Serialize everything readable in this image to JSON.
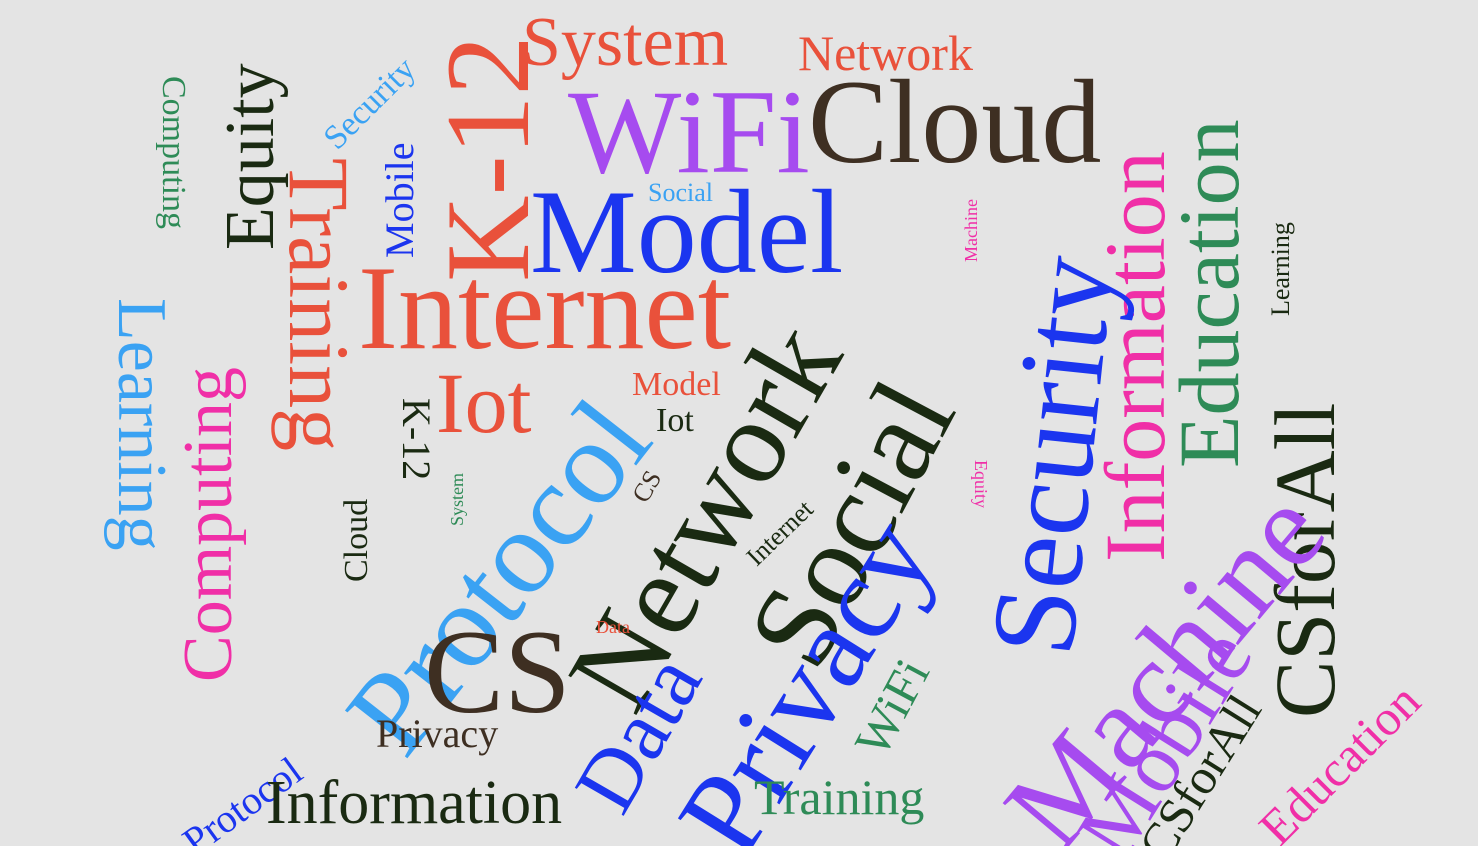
{
  "colors": {
    "background": "#e4e4e4",
    "red": "#e9513b",
    "purple": "#a64bef",
    "brown": "#3e2f22",
    "blue": "#1b35ef",
    "lightblue": "#3aa2f3",
    "green": "#2e8b57",
    "pink": "#f02fa7",
    "dark": "#1a2a12"
  },
  "words": [
    {
      "text": "System"
    },
    {
      "text": "Network"
    },
    {
      "text": "WiFi"
    },
    {
      "text": "Cloud"
    },
    {
      "text": "Information"
    },
    {
      "text": "Education"
    },
    {
      "text": "Model"
    },
    {
      "text": "Social"
    },
    {
      "text": "Security"
    },
    {
      "text": "Computing"
    },
    {
      "text": "Equity"
    },
    {
      "text": "K-12"
    },
    {
      "text": "Training"
    },
    {
      "text": "Mobile"
    },
    {
      "text": "Internet"
    },
    {
      "text": "Learning"
    },
    {
      "text": "Computing"
    },
    {
      "text": "Iot"
    },
    {
      "text": "K-12"
    },
    {
      "text": "Protocol"
    },
    {
      "text": "Model"
    },
    {
      "text": "Iot"
    },
    {
      "text": "Network"
    },
    {
      "text": "Social"
    },
    {
      "text": "Security"
    },
    {
      "text": "Machine"
    },
    {
      "text": "Learning"
    },
    {
      "text": "CSforAll"
    },
    {
      "text": "Cloud"
    },
    {
      "text": "System"
    },
    {
      "text": "CS"
    },
    {
      "text": "Internet"
    },
    {
      "text": "Data"
    },
    {
      "text": "Privacy"
    },
    {
      "text": "Equity"
    },
    {
      "text": "Data"
    },
    {
      "text": "CS"
    },
    {
      "text": "WiFi"
    },
    {
      "text": "Machine"
    },
    {
      "text": "Mobile"
    },
    {
      "text": "CSforAll"
    },
    {
      "text": "Education"
    },
    {
      "text": "Protocol"
    },
    {
      "text": "Privacy"
    },
    {
      "text": "Information"
    },
    {
      "text": "Training"
    }
  ]
}
